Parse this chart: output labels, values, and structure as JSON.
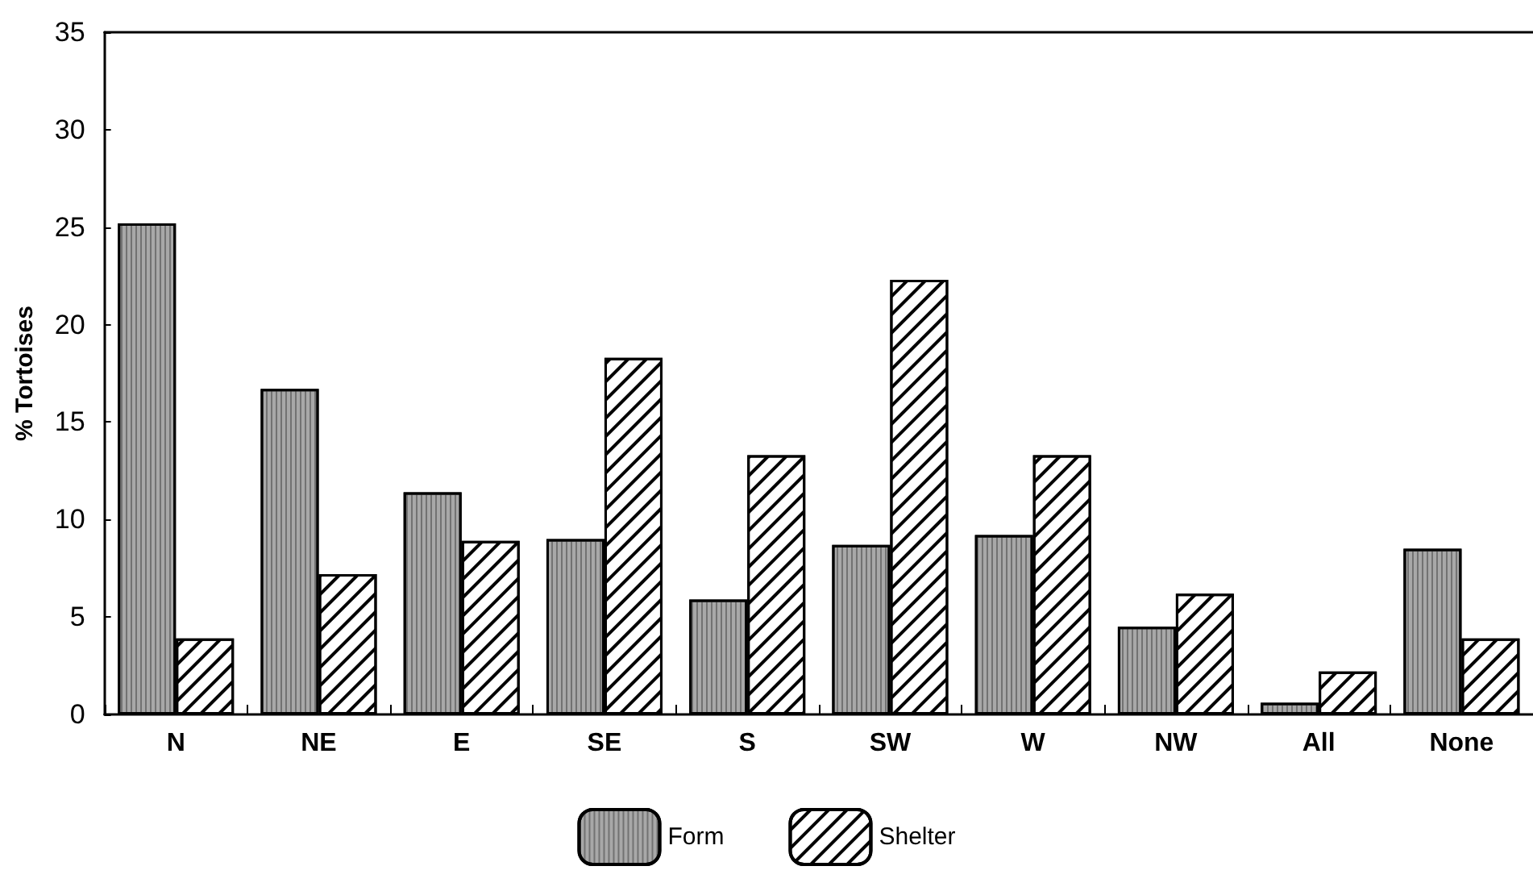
{
  "chart_data": {
    "type": "bar",
    "ylabel": "% Tortoises",
    "categories": [
      "N",
      "NE",
      "E",
      "SE",
      "S",
      "SW",
      "W",
      "NW",
      "All",
      "None"
    ],
    "series": [
      {
        "name": "Form",
        "color": "#a8a8a8",
        "values": [
          25.2,
          16.7,
          11.4,
          9.0,
          5.9,
          8.7,
          9.2,
          4.5,
          0.6,
          8.5
        ]
      },
      {
        "name": "Shelter",
        "color": "#ffffff",
        "values": [
          3.9,
          7.2,
          8.9,
          18.3,
          13.3,
          22.3,
          13.3,
          6.2,
          2.2,
          3.9
        ]
      }
    ],
    "ylim": [
      0,
      35
    ],
    "yticks": [
      0,
      5,
      10,
      15,
      20,
      25,
      30,
      35
    ],
    "grid": false,
    "legend": "bottom"
  }
}
